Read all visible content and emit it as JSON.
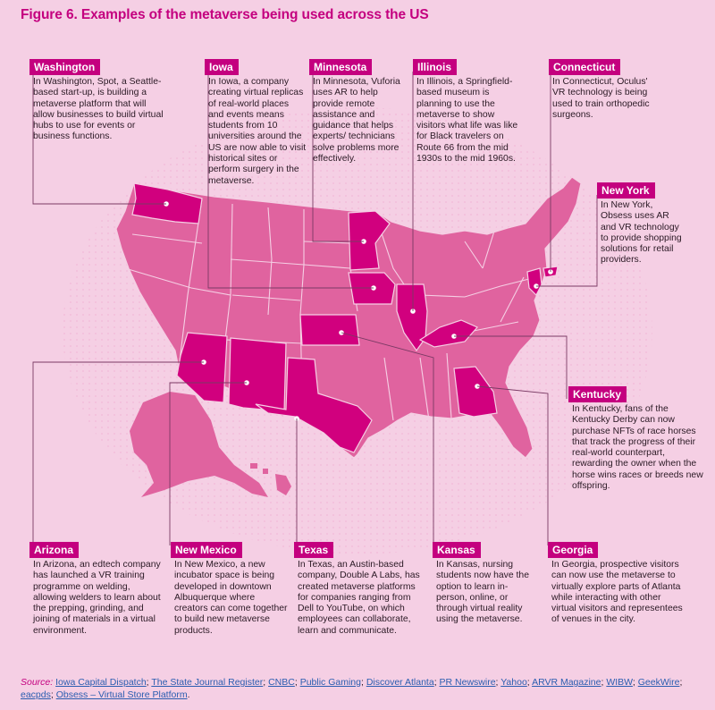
{
  "title": "Figure 6. Examples of the metaverse being used across the US",
  "colors": {
    "accent": "#c4007f",
    "map_base": "#e0639f",
    "map_highlight": "#d1007e",
    "background": "#f5cfe4"
  },
  "callouts": [
    {
      "state": "Washington",
      "text": "In Washington, Spot, a Seattle-based start-up, is building a metaverse platform that will allow businesses to build virtual hubs to use for events or business functions."
    },
    {
      "state": "Iowa",
      "text": "In Iowa, a company creating virtual replicas of real-world places and events means students from 10 universities around the US are now able to visit historical sites or perform surgery in the metaverse."
    },
    {
      "state": "Minnesota",
      "text": "In Minnesota, Vuforia uses AR to help provide remote assistance and guidance that helps experts/ technicians solve problems more effectively."
    },
    {
      "state": "Illinois",
      "text": "In Illinois, a Springfield-based museum is planning to use the metaverse to show visitors what life was like for Black travelers on Route 66 from the mid 1930s to the mid 1960s."
    },
    {
      "state": "Connecticut",
      "text": "In Connecticut, Oculus' VR technology is being used to train orthopedic surgeons."
    },
    {
      "state": "New York",
      "text": "In New York, Obsess uses AR and VR technology to provide shopping solutions for retail providers."
    },
    {
      "state": "Kentucky",
      "text": "In Kentucky, fans of the Kentucky Derby can now purchase NFTs of race horses that track the progress of their real-world counterpart, rewarding the owner when the horse wins races or breeds new offspring."
    },
    {
      "state": "Arizona",
      "text": "In Arizona, an edtech company has launched a VR training programme on welding, allowing welders to learn about the prepping, grinding, and joining of materials in a virtual environment."
    },
    {
      "state": "New Mexico",
      "text": "In New Mexico, a new incubator space is being developed in downtown Albuquerque where creators can come together to build new metaverse products."
    },
    {
      "state": "Texas",
      "text": "In Texas, an Austin-based company, Double A Labs, has created metaverse platforms for companies ranging from Dell to YouTube, on which employees can collaborate, learn and communicate."
    },
    {
      "state": "Kansas",
      "text": "In Kansas, nursing students now have the option to learn in-person, online, or through virtual reality using the metaverse."
    },
    {
      "state": "Georgia",
      "text": "In Georgia, prospective visitors can now use the metaverse to virtually explore parts of Atlanta while interacting with other virtual visitors and representees of venues in the city."
    }
  ],
  "source": {
    "label": "Source:",
    "links": [
      "Iowa Capital Dispatch",
      "The State Journal Register",
      "CNBC",
      "Public Gaming",
      "Discover Atlanta",
      "PR Newswire",
      "Yahoo",
      "ARVR Magazine",
      "WIBW",
      "GeekWire",
      "eacpds",
      "Obsess – Virtual Store Platform"
    ],
    "end": "."
  }
}
